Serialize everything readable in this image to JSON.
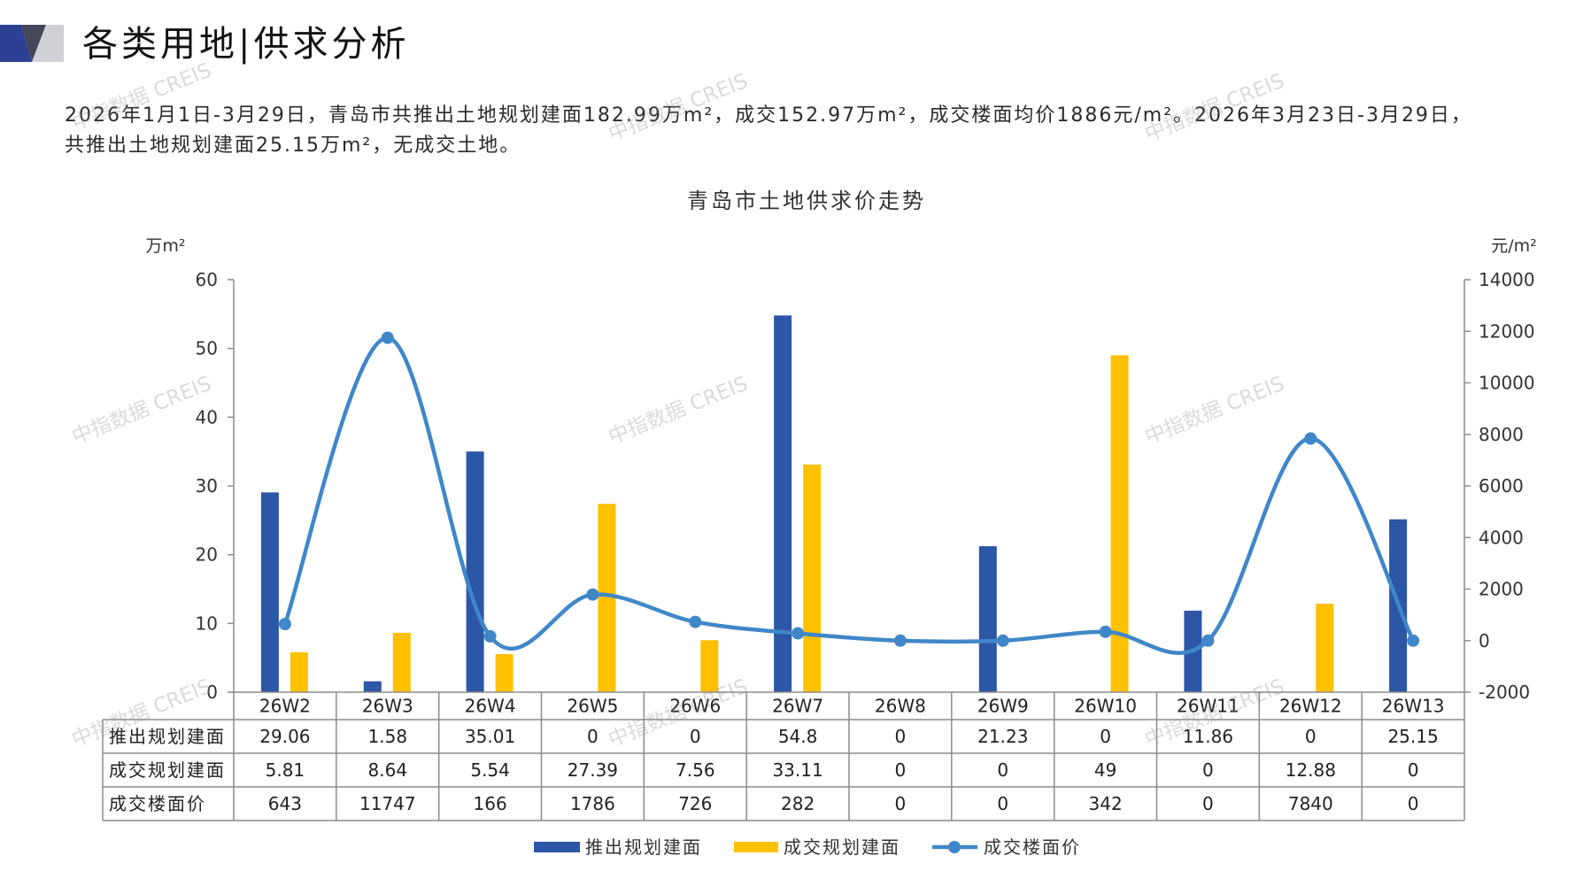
{
  "header": {
    "title": "各类用地|供求分析"
  },
  "summary": {
    "line1": "2026年1月1日-3月29日，青岛市共推出土地规划建面182.99万m²，成交152.97万m²，成交楼面均价1886元/m²。2026年3月23日-3月29日，",
    "line2": "共推出土地规划建面25.15万m²，无成交土地。"
  },
  "watermark": "中指数据 CREIS",
  "colors": {
    "axis": "#8c8c8c",
    "table_border": "#8c8c8c",
    "header_navy": "#2c3f93",
    "header_dark": "#44465a",
    "header_light": "#cfd1d6"
  },
  "chart_data": {
    "type": "bar",
    "title": "青岛市土地供求价走势",
    "ylabel": "万m²",
    "y2label": "元/m²",
    "ylim": [
      0,
      60
    ],
    "y2lim": [
      -2000,
      14000
    ],
    "y_ticks": [
      0,
      10,
      20,
      30,
      40,
      50,
      60
    ],
    "y2_ticks": [
      -2000,
      0,
      2000,
      4000,
      6000,
      8000,
      10000,
      12000,
      14000
    ],
    "grid": false,
    "legend": "bottom",
    "data_table": true,
    "categories": [
      "26W2",
      "26W3",
      "26W4",
      "26W5",
      "26W6",
      "26W7",
      "26W8",
      "26W9",
      "26W10",
      "26W11",
      "26W12",
      "26W13"
    ],
    "series": [
      {
        "name": "推出规划建面",
        "type": "bar",
        "secondary_axis": false,
        "color": "#2c56a6",
        "values": [
          29.06,
          1.58,
          35.01,
          0,
          0,
          54.8,
          0,
          21.23,
          0,
          11.86,
          0,
          25.15
        ]
      },
      {
        "name": "成交规划建面",
        "type": "bar",
        "secondary_axis": false,
        "color": "#ffc000",
        "values": [
          5.81,
          8.64,
          5.54,
          27.39,
          7.56,
          33.11,
          0,
          0,
          49,
          0,
          12.88,
          0
        ]
      },
      {
        "name": "成交楼面价",
        "type": "line",
        "smooth": true,
        "secondary_axis": true,
        "color": "#3f87c9",
        "values": [
          643,
          11747,
          166,
          1786,
          726,
          282,
          0,
          0,
          342,
          0,
          7840,
          0
        ]
      }
    ]
  }
}
